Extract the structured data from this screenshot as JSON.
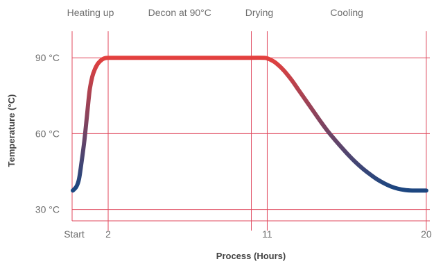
{
  "chart_data": {
    "type": "line",
    "title": "",
    "xlabel": "Process (Hours)",
    "ylabel": "Temperature (°C)",
    "x_ticks": [
      {
        "value": 0,
        "label": "Start"
      },
      {
        "value": 2,
        "label": "2"
      },
      {
        "value": 11,
        "label": "11"
      },
      {
        "value": 20,
        "label": "20"
      }
    ],
    "y_ticks": [
      {
        "value": 30,
        "label": "30 °C"
      },
      {
        "value": 60,
        "label": "60 °C"
      },
      {
        "value": 90,
        "label": "90 °C"
      }
    ],
    "phases": [
      {
        "label": "Heating up",
        "start": 0,
        "end": 2
      },
      {
        "label": "Decon at 90°C",
        "start": 2,
        "end": 10.1
      },
      {
        "label": "Drying",
        "start": 10.1,
        "end": 11
      },
      {
        "label": "Cooling",
        "start": 11,
        "end": 20
      }
    ],
    "xlim": [
      -0.04,
      20.2
    ],
    "ylim": [
      25.5,
      100.5
    ],
    "grid": true,
    "series": [
      {
        "x": [
          0,
          0.2,
          0.35,
          0.5,
          0.65,
          0.8,
          0.95,
          1.1,
          1.25,
          1.4,
          1.55,
          1.7,
          1.85,
          2.0,
          2.2,
          4.0,
          6.0,
          8.0,
          10.0,
          10.8,
          11.0,
          11.2,
          11.4,
          11.6,
          11.8,
          12.0,
          12.4,
          12.8,
          13.2,
          13.6,
          14.0,
          14.4,
          14.8,
          15.2,
          15.6,
          16.0,
          16.4,
          16.8,
          17.2,
          17.6,
          18.0,
          18.4,
          18.8,
          19.2,
          19.6,
          20.0
        ],
        "y": [
          37.5,
          39,
          42,
          49,
          57,
          67,
          77,
          82.5,
          85.5,
          87.5,
          88.7,
          89.5,
          89.9,
          90,
          90,
          90,
          90,
          90,
          90,
          90,
          89.8,
          89.2,
          88.4,
          87.3,
          86,
          84.5,
          81,
          77,
          73,
          69,
          65,
          61.2,
          57.8,
          54.6,
          51.5,
          48.7,
          46.2,
          44,
          42,
          40.4,
          39.1,
          38.2,
          37.7,
          37.5,
          37.5,
          37.5
        ]
      }
    ],
    "colors": {
      "grid": "#e04a5e",
      "curve_hot": "#e8403d",
      "curve_cool": "#1d4680",
      "text": "#6d6d6d",
      "axis_title": "#444444"
    }
  }
}
